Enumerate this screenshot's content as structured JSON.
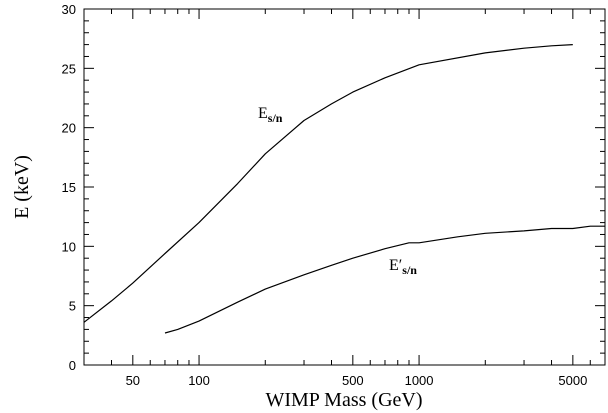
{
  "chart_data": {
    "type": "line",
    "title": "",
    "xlabel": "WIMP Mass (GeV)",
    "ylabel": "E (keV)",
    "x_scale": "log",
    "xlim": [
      30,
      7000
    ],
    "ylim": [
      0,
      30
    ],
    "grid": false,
    "x_ticks": [
      {
        "value": 50,
        "label": "50"
      },
      {
        "value": 100,
        "label": "100"
      },
      {
        "value": 500,
        "label": "500"
      },
      {
        "value": 1000,
        "label": "1000"
      },
      {
        "value": 5000,
        "label": "5000"
      }
    ],
    "y_ticks": [
      {
        "value": 0,
        "label": "0"
      },
      {
        "value": 5,
        "label": "5"
      },
      {
        "value": 10,
        "label": "10"
      },
      {
        "value": 15,
        "label": "15"
      },
      {
        "value": 20,
        "label": "20"
      },
      {
        "value": 25,
        "label": "25"
      },
      {
        "value": 30,
        "label": "30"
      }
    ],
    "series": [
      {
        "label_main": "E",
        "label_prime": "",
        "label_sub": "s/n",
        "color": "#000000",
        "x": [
          30,
          40,
          50,
          70,
          100,
          150,
          200,
          300,
          400,
          500,
          700,
          1000,
          2000,
          3000,
          4000,
          5000
        ],
        "y": [
          3.6,
          5.4,
          6.9,
          9.4,
          12.0,
          15.3,
          17.8,
          20.6,
          22.0,
          23.0,
          24.2,
          25.3,
          26.3,
          26.7,
          26.9,
          27.0
        ]
      },
      {
        "label_main": "E",
        "label_prime": "′",
        "label_sub": "s/n",
        "color": "#000000",
        "x": [
          70,
          80,
          100,
          150,
          200,
          300,
          400,
          500,
          700,
          900,
          1000,
          1500,
          2000,
          3000,
          4000,
          5000,
          6000,
          7000
        ],
        "y": [
          2.7,
          3.0,
          3.7,
          5.3,
          6.4,
          7.6,
          8.4,
          9.0,
          9.8,
          10.3,
          10.3,
          10.8,
          11.1,
          11.3,
          11.5,
          11.5,
          11.7,
          11.7
        ]
      }
    ]
  }
}
